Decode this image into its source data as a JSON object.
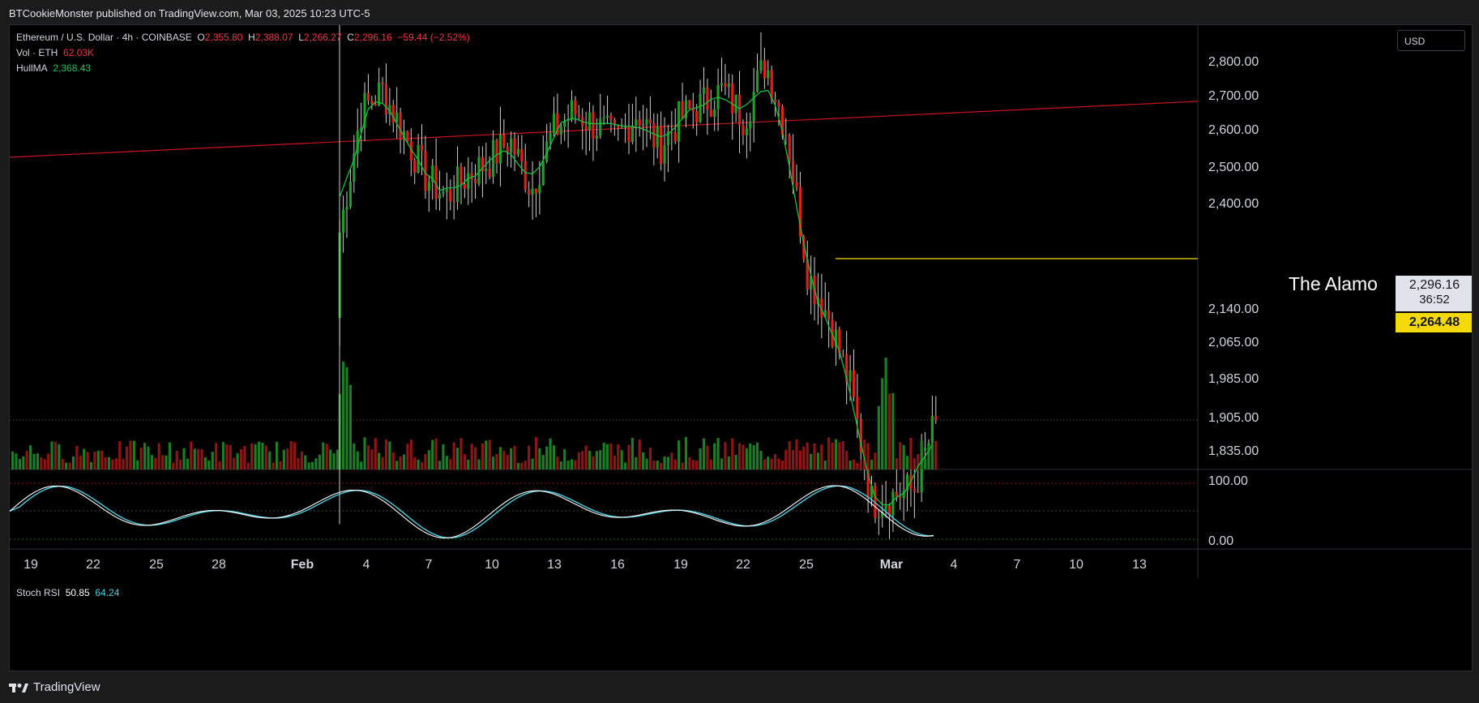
{
  "header": {
    "published_text": "BTCookieMonster published on TradingView.com, Mar 03, 2025 10:23 UTC-5"
  },
  "legend": {
    "symbol": "Ethereum / U.S. Dollar · 4h · COINBASE",
    "o_label": "O",
    "o_value": "2,355.80",
    "h_label": "H",
    "h_value": "2,388.07",
    "l_label": "L",
    "l_value": "2,266.27",
    "c_label": "C",
    "c_value": "2,296.16",
    "change": "−59.44 (−2.52%)",
    "vol_label": "Vol · ETH",
    "vol_value": "62.03K",
    "hull_label": "HullMA",
    "hull_value": "2,368.43",
    "stoch_label": "Stoch RSI",
    "stoch_k": "50.85",
    "stoch_d": "64.24"
  },
  "price_axis": {
    "currency": "USD",
    "labels": [
      "2,800.00",
      "2,700.00",
      "2,600.00",
      "2,500.00",
      "2,400.00",
      "2,140.00",
      "2,065.00",
      "1,985.00",
      "1,905.00",
      "1,835.00"
    ],
    "rsi_labels": [
      "100.00",
      "0.00"
    ]
  },
  "time_axis": {
    "labels": [
      "19",
      "22",
      "25",
      "28",
      "Feb",
      "4",
      "7",
      "10",
      "13",
      "16",
      "19",
      "22",
      "25",
      "Mar",
      "4",
      "7",
      "10",
      "13"
    ]
  },
  "annotation": {
    "text": "The Alamo"
  },
  "current_price": {
    "value": "2,296.16",
    "countdown": "36:52"
  },
  "level_price": {
    "value": "2,264.48"
  },
  "footer": {
    "brand": "TradingView"
  },
  "colors": {
    "up": "#1f9d2a",
    "down": "#e01e1e",
    "trendline": "#c8141e",
    "level": "#f5d90a",
    "rsi_k": "#ffffff",
    "rsi_d": "#4dd0e1",
    "background": "#000000"
  },
  "chart_data": {
    "type": "candlestick",
    "symbol": "ETH/USD",
    "interval": "4h",
    "y_range": [
      1790,
      2870
    ],
    "annotations": [
      {
        "text": "The Alamo",
        "price": 2264.48
      }
    ],
    "current_price": 2296.16,
    "trendline": {
      "from": [
        "Jan 17",
        2525
      ],
      "to": [
        "Mar 19",
        2683
      ]
    },
    "ohlc_legend": {
      "open": 2355.8,
      "high": 2388.07,
      "low": 2266.27,
      "close": 2296.16,
      "change": -59.44,
      "change_pct": -2.52
    },
    "indicators": [
      {
        "name": "Vol · ETH",
        "value": "62.03K"
      },
      {
        "name": "HullMA",
        "value": 2368.43
      },
      {
        "name": "Stoch RSI",
        "k": 50.85,
        "d": 64.24,
        "range": [
          0,
          100
        ]
      }
    ],
    "price_path": [
      {
        "x": "Feb 3",
        "y": 2560
      },
      {
        "x": "Feb 4",
        "y": 2730
      },
      {
        "x": "Feb 5",
        "y": 2760
      },
      {
        "x": "Feb 6",
        "y": 2700
      },
      {
        "x": "Feb 7",
        "y": 2640
      },
      {
        "x": "Feb 8",
        "y": 2610
      },
      {
        "x": "Feb 9",
        "y": 2640
      },
      {
        "x": "Feb 10",
        "y": 2660
      },
      {
        "x": "Feb 11",
        "y": 2690
      },
      {
        "x": "Feb 12",
        "y": 2620
      },
      {
        "x": "Feb 13",
        "y": 2700
      },
      {
        "x": "Feb 14",
        "y": 2730
      },
      {
        "x": "Feb 15",
        "y": 2710
      },
      {
        "x": "Feb 16",
        "y": 2690
      },
      {
        "x": "Feb 17",
        "y": 2730
      },
      {
        "x": "Feb 18",
        "y": 2680
      },
      {
        "x": "Feb 19",
        "y": 2720
      },
      {
        "x": "Feb 20",
        "y": 2740
      },
      {
        "x": "Feb 21",
        "y": 2760
      },
      {
        "x": "Feb 22",
        "y": 2720
      },
      {
        "x": "Feb 23",
        "y": 2800
      },
      {
        "x": "Feb 24",
        "y": 2700
      },
      {
        "x": "Feb 25",
        "y": 2500
      },
      {
        "x": "Feb 26",
        "y": 2440
      },
      {
        "x": "Feb 27",
        "y": 2340
      },
      {
        "x": "Feb 28",
        "y": 2180
      },
      {
        "x": "Mar 1",
        "y": 2190
      },
      {
        "x": "Mar 2",
        "y": 2200
      },
      {
        "x": "Mar 3",
        "y": 2296
      }
    ]
  }
}
